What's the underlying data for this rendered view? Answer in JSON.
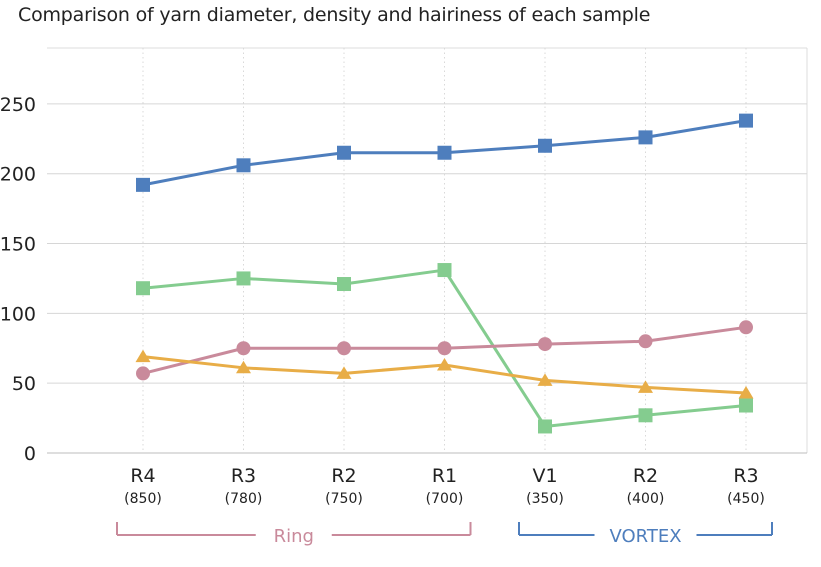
{
  "chart_data": {
    "type": "line",
    "title": "Comparison of yarn diameter, density and hairiness of each sample",
    "xlabel": "",
    "ylabel": "",
    "ylim": [
      0,
      290
    ],
    "yticks": [
      0,
      50,
      100,
      150,
      200,
      250
    ],
    "categories": [
      "R4",
      "R3",
      "R2",
      "R1",
      "V1",
      "R2",
      "R3"
    ],
    "sublabels": [
      "(850)",
      "(780)",
      "(750)",
      "(700)",
      "(350)",
      "(400)",
      "(450)"
    ],
    "groups": [
      {
        "label": "Ring",
        "start": 0,
        "end": 3,
        "color": "#c98a9b"
      },
      {
        "label": "VORTEX",
        "start": 4,
        "end": 6,
        "color": "#4e7ebd"
      }
    ],
    "grid": true,
    "series": [
      {
        "values": [
          192,
          206,
          215,
          215,
          220,
          226,
          238
        ],
        "color": "#4e7ebd",
        "marker": "square"
      },
      {
        "values": [
          118,
          125,
          121,
          131,
          19,
          27,
          34
        ],
        "color": "#84cc8f",
        "marker": "square"
      },
      {
        "values": [
          57,
          75,
          75,
          75,
          78,
          80,
          90
        ],
        "color": "#c98a9b",
        "marker": "circle"
      },
      {
        "values": [
          69,
          61,
          57,
          63,
          52,
          47,
          43
        ],
        "color": "#e8ad47",
        "marker": "triangle"
      }
    ]
  }
}
